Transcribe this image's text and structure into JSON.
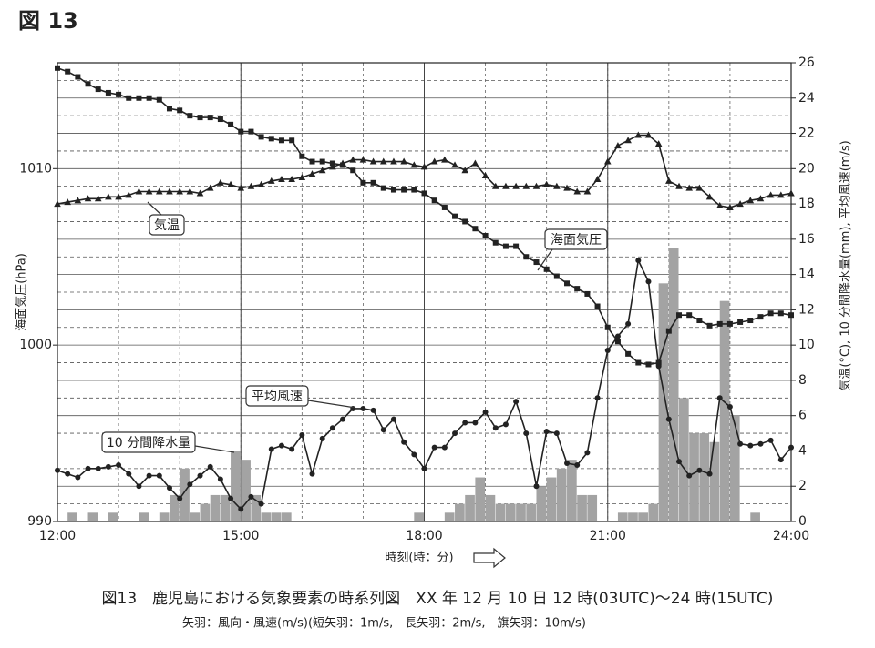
{
  "header": "図 13",
  "chart_data": {
    "type": "line",
    "x": [
      12,
      12.1667,
      12.3333,
      12.5,
      12.6667,
      12.8333,
      13,
      13.1667,
      13.3333,
      13.5,
      13.6667,
      13.8333,
      14,
      14.1667,
      14.3333,
      14.5,
      14.6667,
      14.8333,
      15,
      15.1667,
      15.3333,
      15.5,
      15.6667,
      15.8333,
      16,
      16.1667,
      16.3333,
      16.5,
      16.6667,
      16.8333,
      17,
      17.1667,
      17.3333,
      17.5,
      17.6667,
      17.8333,
      18,
      18.1667,
      18.3333,
      18.5,
      18.6667,
      18.8333,
      19,
      19.1667,
      19.3333,
      19.5,
      19.6667,
      19.8333,
      20,
      20.1667,
      20.3333,
      20.5,
      20.6667,
      20.8333,
      21,
      21.1667,
      21.3333,
      21.5,
      21.6667,
      21.8333,
      22,
      22.1667,
      22.3333,
      22.5,
      22.6667,
      22.8333,
      23,
      23.1667,
      23.3333,
      23.5,
      23.6667,
      23.8333,
      24
    ],
    "xlim": [
      12,
      24
    ],
    "xticks": [
      {
        "value": 12,
        "label": "12:00"
      },
      {
        "value": 15,
        "label": "15:00"
      },
      {
        "value": 18,
        "label": "18:00"
      },
      {
        "value": 21,
        "label": "21:00"
      },
      {
        "value": 24,
        "label": "24:00"
      }
    ],
    "xlabel": "時刻(時：分)",
    "ylim": [
      990,
      1016
    ],
    "yticks": [
      990,
      1000,
      1010
    ],
    "ylabel": "海面気圧(hPa)",
    "y2lim": [
      0,
      26
    ],
    "y2ticks": [
      0,
      2,
      4,
      6,
      8,
      10,
      12,
      14,
      16,
      18,
      20,
      22,
      24,
      26
    ],
    "y2label": "気温(°C), 10 分間降水量(mm), 平均風速(m/s)",
    "grid": true,
    "series": [
      {
        "name": "10 分間降水量",
        "type": "bar",
        "axis": "y2",
        "color": "#a3a3a3",
        "values": [
          0,
          0,
          0.5,
          0,
          0.5,
          0,
          0.5,
          0,
          0,
          0.5,
          0,
          0.5,
          1.5,
          3.0,
          0.5,
          1.0,
          1.5,
          1.5,
          4.0,
          3.5,
          1.5,
          0.5,
          0.5,
          0.5,
          0,
          0,
          0,
          0,
          0,
          0,
          0,
          0,
          0,
          0,
          0,
          0,
          0.5,
          0,
          0,
          0.5,
          1.0,
          1.5,
          2.5,
          1.5,
          1.0,
          1.0,
          1.0,
          1.0,
          2.0,
          2.5,
          3.0,
          3.5,
          1.5,
          1.5,
          0,
          0,
          0.5,
          0.5,
          0.5,
          1.0,
          13.5,
          15.5,
          7.0,
          5.0,
          5.0,
          4.5,
          12.5,
          6.0,
          0,
          0.5,
          0,
          0,
          0
        ]
      },
      {
        "name": "海面気圧",
        "type": "line",
        "marker": "square",
        "color": "#222222",
        "values": [
          1015.7,
          1015.5,
          1015.2,
          1014.8,
          1014.5,
          1014.3,
          1014.2,
          1014.0,
          1014.0,
          1014.0,
          1013.9,
          1013.4,
          1013.3,
          1013.0,
          1012.9,
          1012.9,
          1012.8,
          1012.5,
          1012.1,
          1012.1,
          1011.8,
          1011.7,
          1011.6,
          1011.6,
          1010.7,
          1010.4,
          1010.4,
          1010.3,
          1010.2,
          1009.9,
          1009.2,
          1009.2,
          1008.9,
          1008.8,
          1008.8,
          1008.8,
          1008.6,
          1008.2,
          1007.8,
          1007.3,
          1007.0,
          1006.6,
          1006.2,
          1005.8,
          1005.6,
          1005.6,
          1005.0,
          1004.7,
          1004.3,
          1003.9,
          1003.5,
          1003.2,
          1002.9,
          1002.2,
          1001.0,
          1000.2,
          999.5,
          999.0,
          998.9,
          999.0,
          1000.8,
          1001.7,
          1001.7,
          1001.4,
          1001.1,
          1001.2,
          1001.2,
          1001.3,
          1001.4,
          1001.6,
          1001.8,
          1001.8,
          1001.7
        ]
      },
      {
        "name": "気温",
        "type": "line",
        "axis": "y2",
        "marker": "triangle",
        "color": "#222222",
        "values": [
          18.0,
          18.1,
          18.2,
          18.3,
          18.3,
          18.4,
          18.4,
          18.5,
          18.7,
          18.7,
          18.7,
          18.7,
          18.7,
          18.7,
          18.6,
          18.9,
          19.2,
          19.1,
          18.9,
          19.0,
          19.1,
          19.3,
          19.4,
          19.4,
          19.5,
          19.7,
          19.9,
          20.1,
          20.3,
          20.5,
          20.5,
          20.4,
          20.4,
          20.4,
          20.4,
          20.2,
          20.1,
          20.4,
          20.5,
          20.2,
          19.9,
          20.3,
          19.6,
          19.0,
          19.0,
          19.0,
          19.0,
          19.0,
          19.1,
          19.0,
          18.9,
          18.7,
          18.7,
          19.4,
          20.4,
          21.3,
          21.6,
          21.9,
          21.9,
          21.4,
          19.3,
          19.0,
          18.9,
          18.9,
          18.4,
          17.9,
          17.8,
          18.0,
          18.2,
          18.3,
          18.5,
          18.5,
          18.6
        ]
      },
      {
        "name": "平均風速",
        "type": "line",
        "axis": "y2",
        "marker": "circle",
        "color": "#222222",
        "values": [
          2.9,
          2.7,
          2.5,
          3.0,
          3.0,
          3.1,
          3.2,
          2.7,
          2.0,
          2.6,
          2.6,
          1.9,
          1.3,
          2.1,
          2.6,
          3.1,
          2.4,
          1.3,
          0.7,
          1.4,
          1.0,
          4.1,
          4.3,
          4.1,
          4.9,
          2.7,
          4.7,
          5.3,
          5.8,
          6.4,
          6.4,
          6.3,
          5.2,
          5.8,
          4.5,
          3.8,
          3.0,
          4.2,
          4.2,
          5.0,
          5.6,
          5.6,
          6.2,
          5.3,
          5.5,
          6.8,
          5.0,
          2.0,
          5.1,
          5.0,
          3.3,
          3.2,
          3.9,
          7.0,
          9.7,
          10.5,
          11.2,
          14.8,
          13.6,
          8.8,
          5.8,
          3.4,
          2.6,
          2.9,
          2.7,
          7.0,
          6.5,
          4.4,
          4.3,
          4.4,
          4.6,
          3.5,
          4.2
        ]
      }
    ],
    "caption": "図13　鹿児島における気象要素の時系列図　XX 年 12 月 10 日 12 時(03UTC)〜24 時(15UTC)",
    "note": "矢羽：風向・風速(m/s)(短矢羽：1m/s,　長矢羽：2m/s,　旗矢羽：10m/s)"
  }
}
